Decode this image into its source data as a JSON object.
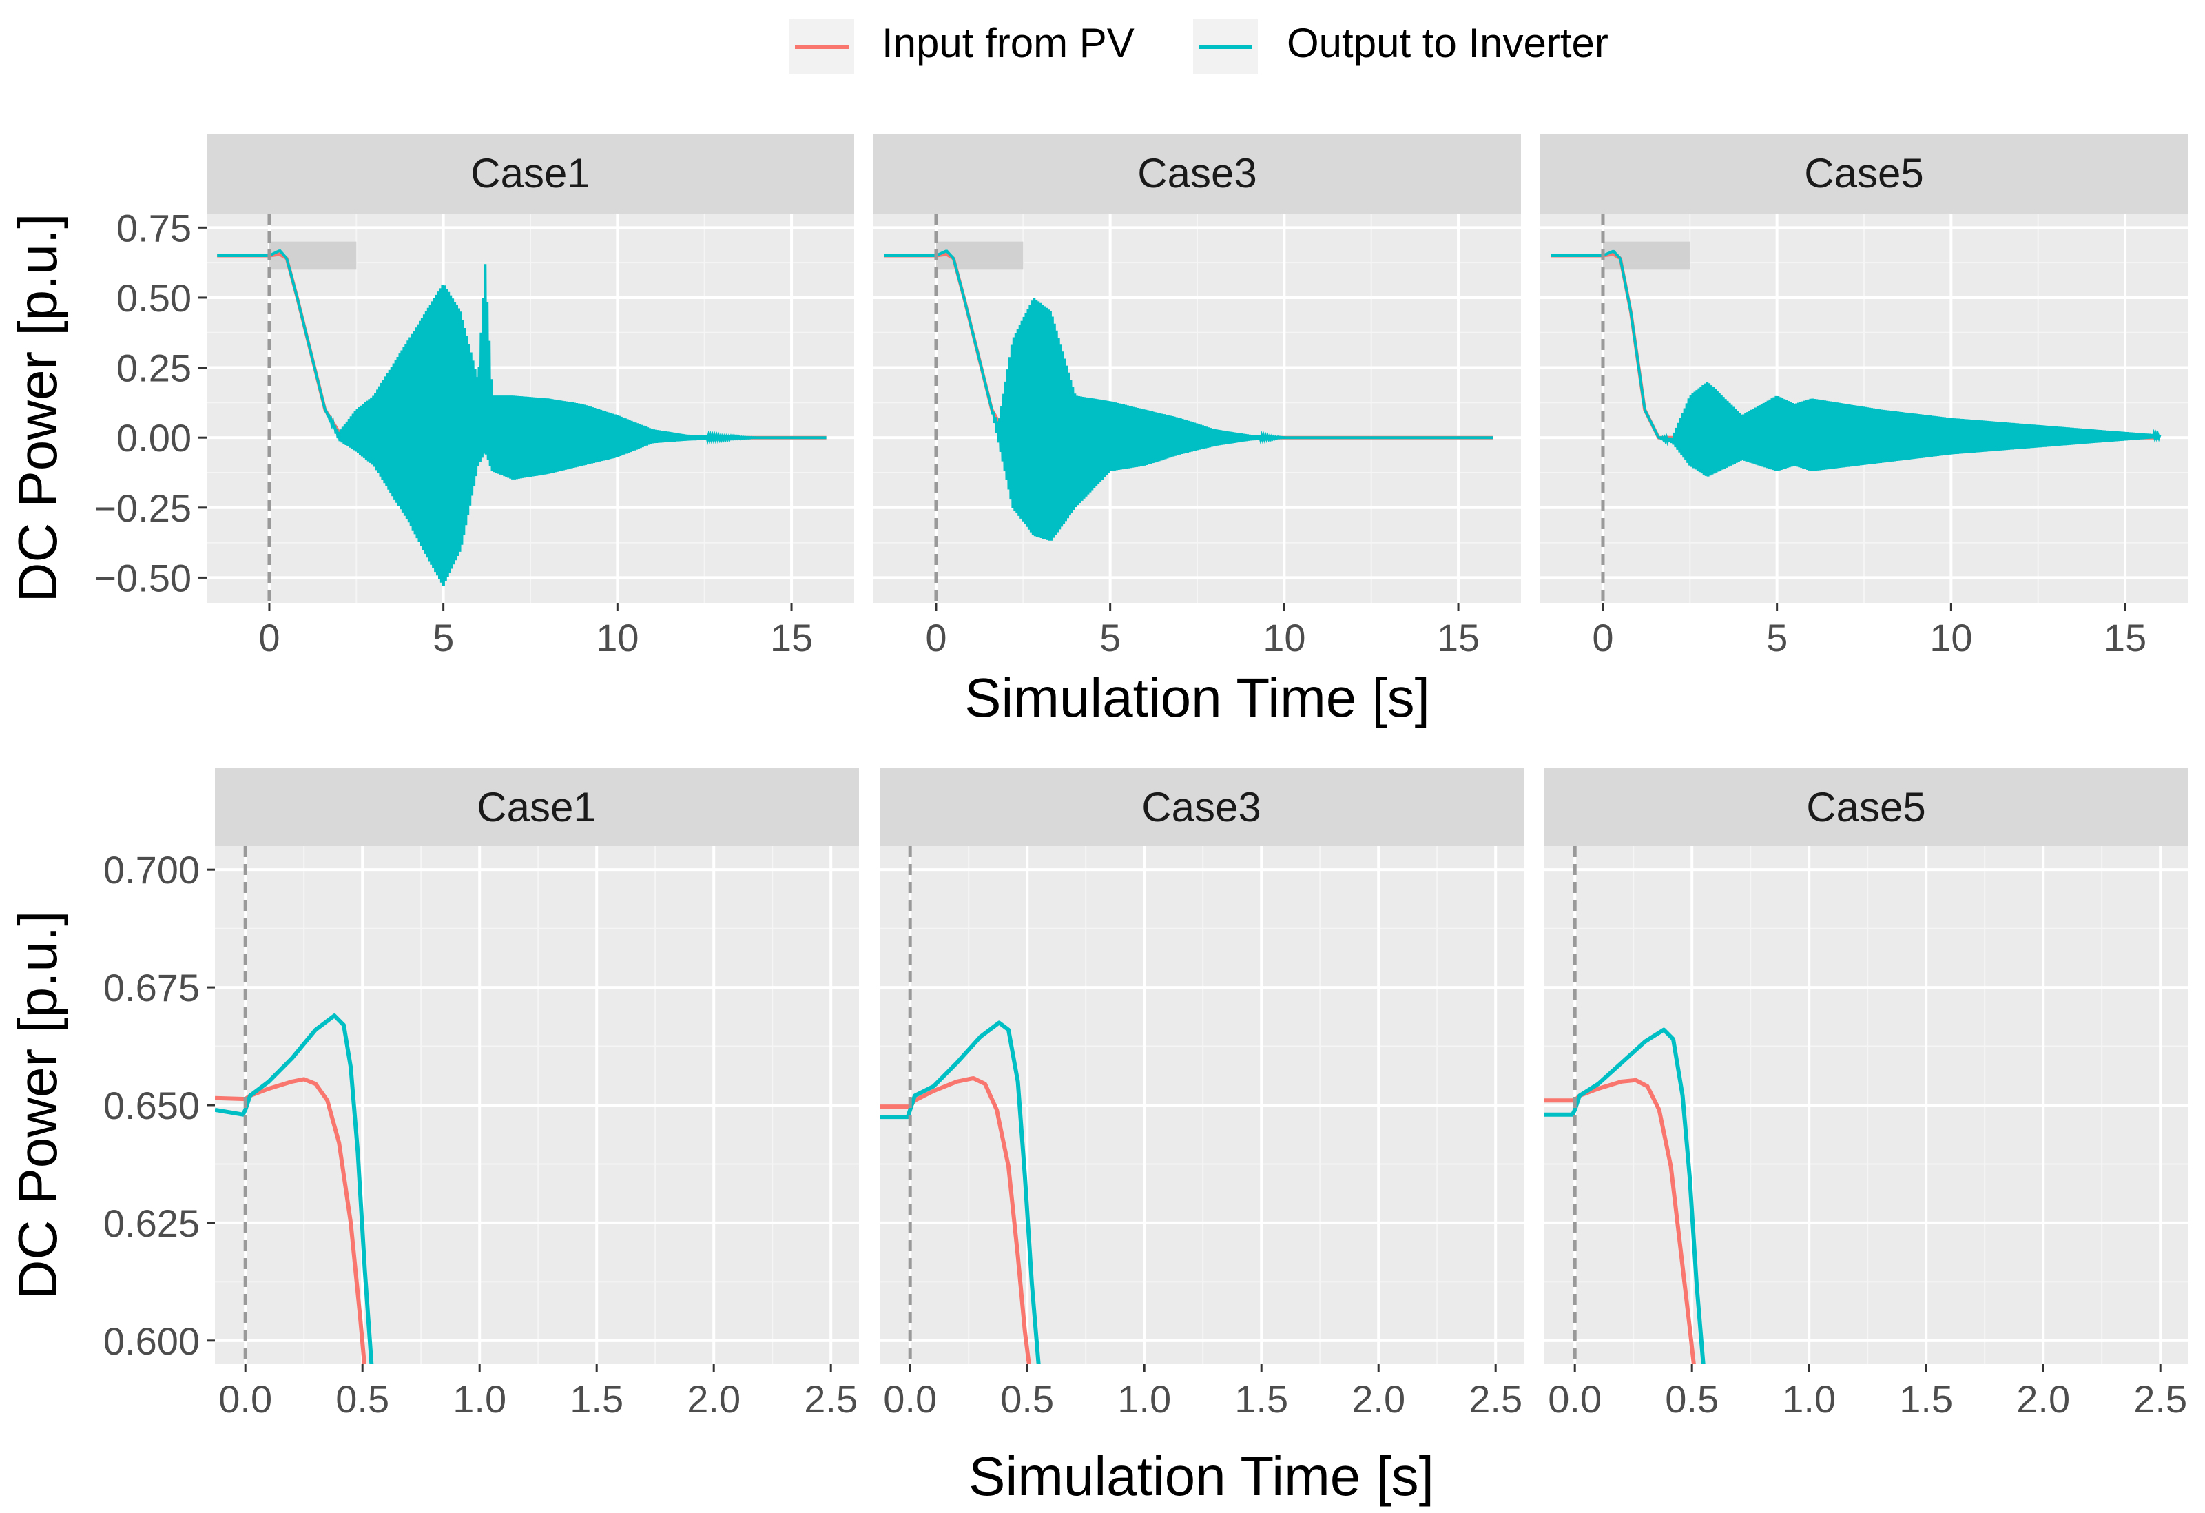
{
  "legend": {
    "items": [
      {
        "label": "Input from PV",
        "color": "#F8766D"
      },
      {
        "label": "Output to Inverter",
        "color": "#00BFC4"
      }
    ]
  },
  "colors": {
    "panel_bg": "#EBEBEB",
    "strip_bg": "#D9D9D9",
    "grid_major": "#FFFFFF",
    "event_line": "#999999",
    "highlight_box": "#CCCCCC"
  },
  "chart_data": [
    {
      "type": "line",
      "facet": "top-row",
      "xlabel": "Simulation Time [s]",
      "ylabel": "DC Power [p.u.]",
      "xlim": [
        -1.8,
        16.8
      ],
      "ylim": [
        -0.59,
        0.8
      ],
      "x_ticks": [
        0,
        5,
        10,
        15
      ],
      "x_tick_labels": [
        "0",
        "5",
        "10",
        "15"
      ],
      "y_ticks": [
        0.75,
        0.5,
        0.25,
        0,
        -0.25,
        -0.5
      ],
      "y_tick_labels": [
        "0.75",
        "0.50",
        "0.25",
        "0.00",
        "−0.25",
        "−0.50"
      ],
      "event_line_x": 0,
      "zoom_window": {
        "x": [
          0,
          2.5
        ],
        "y": [
          0.6,
          0.7
        ]
      },
      "grid": true,
      "legend_position": "top",
      "panels": [
        {
          "label": "Case1",
          "series": [
            {
              "name": "Input from PV",
              "x": [
                -1.5,
                0,
                0.3,
                0.5,
                0.8,
                1.2,
                1.6,
                2.0,
                2.5,
                3.0,
                4.0,
                5.0,
                5.8,
                6.2,
                7,
                8,
                9,
                10,
                11,
                12,
                14,
                16
              ],
              "y": [
                0.65,
                0.65,
                0.655,
                0.64,
                0.5,
                0.3,
                0.1,
                0.02,
                0.0,
                0.0,
                0.0,
                0.0,
                0.0,
                0.02,
                0.0,
                0.0,
                0.0,
                0.0,
                0.0,
                0.0,
                0.0,
                0.0
              ]
            },
            {
              "name": "Output to Inverter",
              "x": [
                -1.5,
                0,
                0.3,
                0.5,
                0.8,
                1.2,
                1.6,
                2.0,
                2.5,
                3,
                4,
                4.5,
                5,
                5.5,
                6.0,
                6.2,
                6.4,
                7,
                8,
                9,
                10,
                11,
                12,
                14,
                16
              ],
              "y": [
                0.65,
                0.65,
                0.668,
                0.64,
                0.5,
                0.3,
                0.1,
                0.02,
                0.1,
                0.15,
                0.35,
                0.45,
                0.55,
                0.45,
                0.2,
                0.62,
                0.15,
                0.15,
                0.14,
                0.12,
                0.08,
                0.03,
                0.01,
                0.0,
                0.0
              ],
              "y_min": [
                0.65,
                0.65,
                0.668,
                0.64,
                0.5,
                0.3,
                0.1,
                -0.01,
                -0.05,
                -0.1,
                -0.3,
                -0.42,
                -0.53,
                -0.4,
                -0.1,
                -0.05,
                -0.12,
                -0.15,
                -0.13,
                -0.1,
                -0.07,
                -0.02,
                -0.01,
                0.0,
                0.0
              ]
            }
          ]
        },
        {
          "label": "Case3",
          "series": [
            {
              "name": "Input from PV",
              "x": [
                -1.5,
                0,
                0.3,
                0.5,
                0.8,
                1.2,
                1.6,
                2.0,
                3,
                5,
                7,
                10,
                12,
                16
              ],
              "y": [
                0.65,
                0.65,
                0.655,
                0.64,
                0.5,
                0.3,
                0.1,
                0.01,
                0.0,
                0.0,
                0.0,
                0.0,
                0.0,
                0.0
              ]
            },
            {
              "name": "Output to Inverter",
              "x": [
                -1.5,
                0,
                0.3,
                0.5,
                0.8,
                1.2,
                1.6,
                1.8,
                2.2,
                2.8,
                3.3,
                4,
                5,
                6,
                7,
                8,
                9,
                10,
                12,
                16
              ],
              "y": [
                0.65,
                0.65,
                0.667,
                0.64,
                0.5,
                0.3,
                0.1,
                0.05,
                0.35,
                0.5,
                0.45,
                0.15,
                0.13,
                0.1,
                0.07,
                0.03,
                0.01,
                0.0,
                0.0,
                0.0
              ],
              "y_min": [
                0.65,
                0.65,
                0.667,
                0.64,
                0.5,
                0.3,
                0.1,
                -0.02,
                -0.25,
                -0.35,
                -0.37,
                -0.25,
                -0.12,
                -0.1,
                -0.06,
                -0.03,
                -0.01,
                0.0,
                0.0,
                0.0
              ]
            }
          ]
        },
        {
          "label": "Case5",
          "series": [
            {
              "name": "Input from PV",
              "x": [
                -1.5,
                0,
                0.3,
                0.5,
                0.8,
                1.2,
                1.6,
                2.0,
                3,
                5,
                8,
                12,
                16
              ],
              "y": [
                0.65,
                0.65,
                0.655,
                0.64,
                0.45,
                0.1,
                0.0,
                0.0,
                0.0,
                0.0,
                0.0,
                0.0,
                0.0
              ]
            },
            {
              "name": "Output to Inverter",
              "x": [
                -1.5,
                0,
                0.3,
                0.5,
                0.8,
                1.2,
                1.6,
                2.0,
                2.5,
                3,
                4,
                5,
                5.5,
                6,
                8,
                10,
                12,
                14,
                16
              ],
              "y": [
                0.65,
                0.65,
                0.666,
                0.64,
                0.45,
                0.1,
                0.0,
                0.0,
                0.15,
                0.2,
                0.08,
                0.15,
                0.12,
                0.14,
                0.1,
                0.07,
                0.05,
                0.03,
                0.01
              ],
              "y_min": [
                0.65,
                0.65,
                0.666,
                0.64,
                0.45,
                0.1,
                0.0,
                -0.02,
                -0.1,
                -0.14,
                -0.08,
                -0.12,
                -0.1,
                -0.12,
                -0.09,
                -0.06,
                -0.04,
                -0.02,
                0.0
              ]
            }
          ]
        }
      ]
    },
    {
      "type": "line",
      "facet": "bottom-row",
      "xlabel": "Simulation Time [s]",
      "ylabel": "DC Power [p.u.]",
      "xlim": [
        -0.13,
        2.62
      ],
      "ylim": [
        0.595,
        0.705
      ],
      "x_ticks": [
        0,
        0.5,
        1,
        1.5,
        2,
        2.5
      ],
      "x_tick_labels": [
        "0.0",
        "0.5",
        "1.0",
        "1.5",
        "2.0",
        "2.5"
      ],
      "y_ticks": [
        0.7,
        0.675,
        0.65,
        0.625,
        0.6
      ],
      "y_tick_labels": [
        "0.700",
        "0.675",
        "0.650",
        "0.625",
        "0.600"
      ],
      "event_line_x": 0,
      "grid": true,
      "panels": [
        {
          "label": "Case1",
          "series": [
            {
              "name": "Input from PV",
              "x": [
                -0.13,
                0,
                0.02,
                0.1,
                0.2,
                0.25,
                0.3,
                0.35,
                0.4,
                0.45,
                0.49,
                0.51
              ],
              "y": [
                0.6515,
                0.6513,
                0.652,
                0.6535,
                0.655,
                0.6555,
                0.6545,
                0.651,
                0.642,
                0.625,
                0.605,
                0.594
              ]
            },
            {
              "name": "Output to Inverter",
              "x": [
                -0.13,
                -0.01,
                0.0,
                0.02,
                0.1,
                0.2,
                0.3,
                0.38,
                0.42,
                0.45,
                0.48,
                0.51,
                0.54
              ],
              "y": [
                0.649,
                0.648,
                0.649,
                0.652,
                0.655,
                0.66,
                0.666,
                0.669,
                0.667,
                0.658,
                0.64,
                0.615,
                0.594
              ]
            }
          ]
        },
        {
          "label": "Case3",
          "series": [
            {
              "name": "Input from PV",
              "x": [
                -0.13,
                0,
                0.02,
                0.1,
                0.2,
                0.27,
                0.32,
                0.37,
                0.42,
                0.46,
                0.49,
                0.51
              ],
              "y": [
                0.6497,
                0.6497,
                0.651,
                0.653,
                0.655,
                0.6557,
                0.6545,
                0.649,
                0.637,
                0.618,
                0.602,
                0.594
              ]
            },
            {
              "name": "Output to Inverter",
              "x": [
                -0.13,
                -0.01,
                0.0,
                0.02,
                0.1,
                0.2,
                0.3,
                0.38,
                0.42,
                0.46,
                0.49,
                0.52,
                0.55
              ],
              "y": [
                0.6475,
                0.6475,
                0.649,
                0.652,
                0.654,
                0.659,
                0.6645,
                0.6675,
                0.666,
                0.655,
                0.635,
                0.612,
                0.594
              ]
            }
          ]
        },
        {
          "label": "Case5",
          "series": [
            {
              "name": "Input from PV",
              "x": [
                -0.13,
                0,
                0.02,
                0.1,
                0.2,
                0.26,
                0.31,
                0.36,
                0.41,
                0.45,
                0.49,
                0.51
              ],
              "y": [
                0.651,
                0.651,
                0.652,
                0.6535,
                0.655,
                0.6553,
                0.654,
                0.649,
                0.637,
                0.62,
                0.603,
                0.594
              ]
            },
            {
              "name": "Output to Inverter",
              "x": [
                -0.13,
                -0.01,
                0.0,
                0.02,
                0.1,
                0.2,
                0.3,
                0.38,
                0.42,
                0.46,
                0.49,
                0.52,
                0.55
              ],
              "y": [
                0.648,
                0.648,
                0.649,
                0.652,
                0.6545,
                0.659,
                0.6635,
                0.666,
                0.664,
                0.652,
                0.635,
                0.612,
                0.594
              ]
            }
          ]
        }
      ]
    }
  ]
}
